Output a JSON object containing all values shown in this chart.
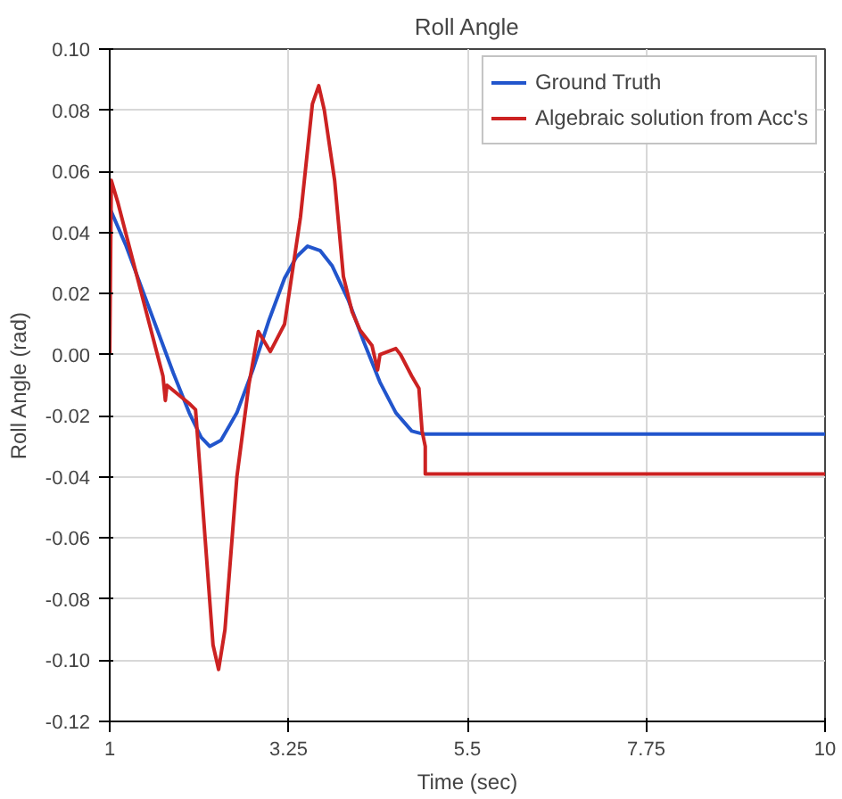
{
  "chart_data": {
    "type": "line",
    "title": "Roll Angle",
    "xlabel": "Time (sec)",
    "ylabel": "Roll Angle (rad)",
    "xlim": [
      1,
      10
    ],
    "ylim": [
      -0.12,
      0.1
    ],
    "xticks": [
      1,
      3.25,
      5.5,
      7.75,
      10
    ],
    "yticks": [
      {
        "value": -0.12,
        "label": "-0.12"
      },
      {
        "value": -0.1,
        "label": "-0.10"
      },
      {
        "value": -0.08,
        "label": "-0.08"
      },
      {
        "value": -0.06,
        "label": "-0.06"
      },
      {
        "value": -0.04,
        "label": "-0.04"
      },
      {
        "value": -0.02,
        "label": "-0.02"
      },
      {
        "value": 0,
        "label": "0.00"
      },
      {
        "value": 0.02,
        "label": "0.02"
      },
      {
        "value": 0.04,
        "label": "0.04"
      },
      {
        "value": 0.06,
        "label": "0.06"
      },
      {
        "value": 0.08,
        "label": "0.08"
      },
      {
        "value": 0.1,
        "label": "0.10"
      }
    ],
    "grid": true,
    "legend": "top right",
    "marker": "none",
    "line_style": "solid",
    "series": [
      {
        "name": "Ground Truth",
        "color": "#2255cc",
        "x": [
          1,
          1.2,
          1.4,
          1.6,
          1.8,
          2.0,
          2.15,
          2.26,
          2.4,
          2.6,
          2.8,
          3.0,
          3.2,
          3.35,
          3.49,
          3.65,
          3.8,
          4.0,
          4.2,
          4.4,
          4.6,
          4.8,
          4.95,
          10
        ],
        "values": [
          0.048,
          0.036,
          0.022,
          0.008,
          -0.006,
          -0.019,
          -0.027,
          -0.03,
          -0.028,
          -0.019,
          -0.005,
          0.011,
          0.025,
          0.032,
          0.0355,
          0.034,
          0.029,
          0.018,
          0.004,
          -0.009,
          -0.019,
          -0.025,
          -0.026,
          -0.026
        ]
      },
      {
        "name": "Algebraic solution from Acc's",
        "color": "#cc2222",
        "x": [
          1,
          1.02,
          1.1,
          1.3,
          1.5,
          1.67,
          1.7,
          1.72,
          2.0,
          2.08,
          2.2,
          2.3,
          2.37,
          2.45,
          2.6,
          2.75,
          2.87,
          3.02,
          3.2,
          3.4,
          3.55,
          3.63,
          3.7,
          3.83,
          3.94,
          4.05,
          4.15,
          4.3,
          4.37,
          4.4,
          4.6,
          4.66,
          4.8,
          4.89,
          4.93,
          4.97,
          4.97,
          10
        ],
        "values": [
          0.0,
          0.057,
          0.05,
          0.03,
          0.01,
          -0.007,
          -0.015,
          -0.01,
          -0.016,
          -0.018,
          -0.06,
          -0.095,
          -0.103,
          -0.09,
          -0.04,
          -0.01,
          0.0076,
          0.001,
          0.01,
          0.045,
          0.082,
          0.088,
          0.08,
          0.057,
          0.0256,
          0.014,
          0.008,
          0.003,
          -0.005,
          0.0,
          0.002,
          0.0,
          -0.007,
          -0.011,
          -0.025,
          -0.03,
          -0.039,
          -0.039
        ]
      }
    ]
  }
}
